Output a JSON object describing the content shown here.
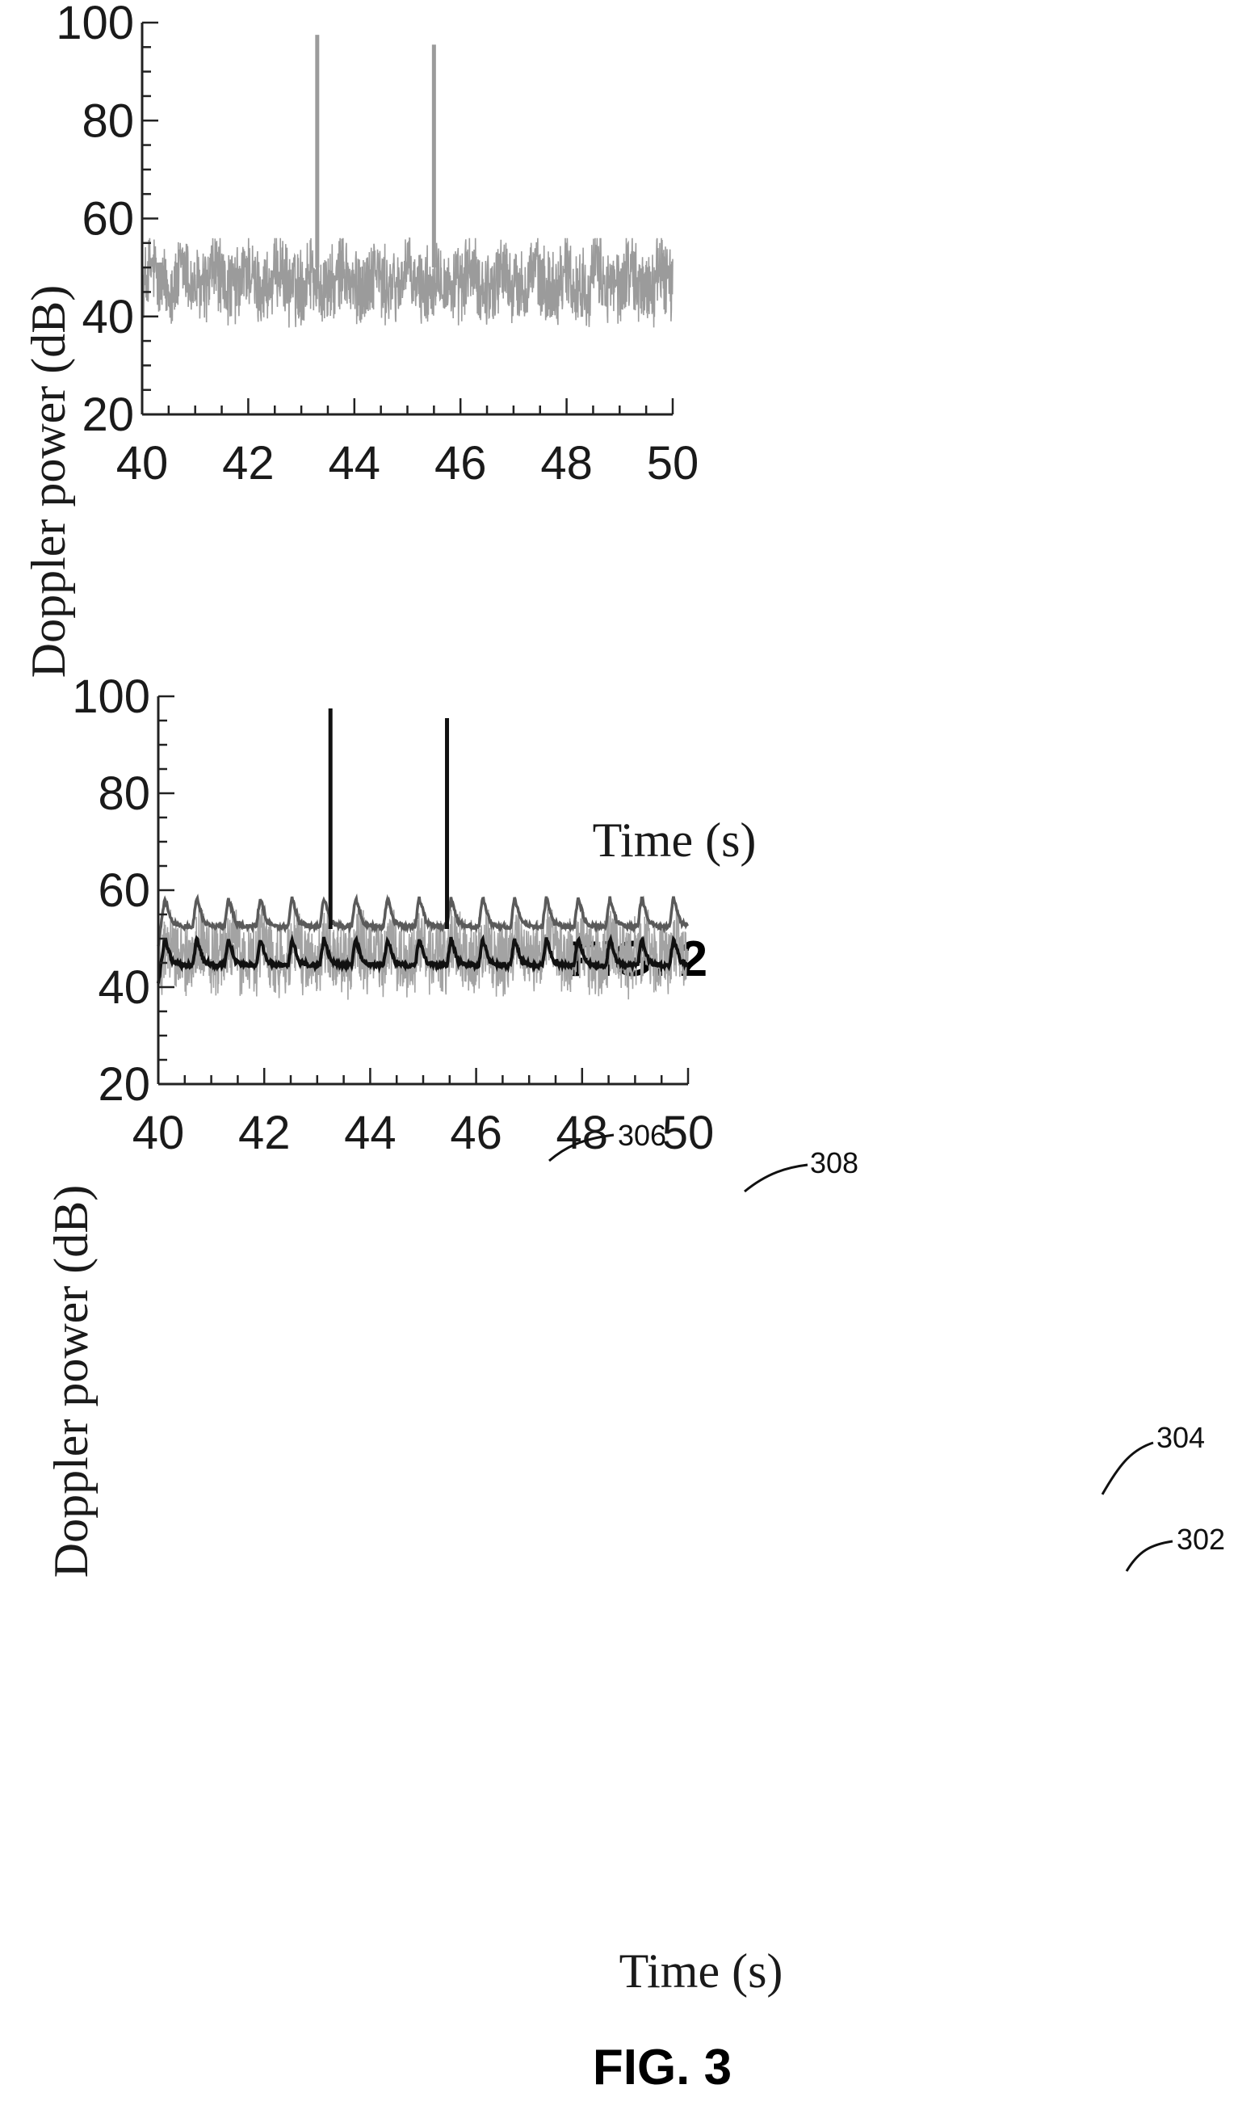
{
  "figures": [
    {
      "caption": "FIG. 2",
      "xlabel": "Time (s)",
      "ylabel": "Doppler power (dB)",
      "xticks": [
        "40",
        "42",
        "44",
        "46",
        "48",
        "50"
      ],
      "yticks": [
        "20",
        "40",
        "60",
        "80",
        "100"
      ],
      "callouts": []
    },
    {
      "caption": "FIG. 3",
      "xlabel": "Time (s)",
      "ylabel": "Doppler power (dB)",
      "xticks": [
        "40",
        "42",
        "44",
        "46",
        "48",
        "50"
      ],
      "yticks": [
        "20",
        "40",
        "60",
        "80",
        "100"
      ],
      "callouts": [
        {
          "label": "306"
        },
        {
          "label": "308"
        },
        {
          "label": "304"
        },
        {
          "label": "302"
        }
      ]
    }
  ],
  "chart_data": [
    {
      "type": "line",
      "xlim": [
        40,
        50
      ],
      "ylim": [
        20,
        100
      ],
      "grid": false,
      "series": [
        {
          "color": "#9b9b9b",
          "style": "noisy",
          "baseline_db": 46,
          "noise_range_db": [
            38,
            56
          ],
          "period_s": 0.6,
          "spikes": [
            {
              "x": 43.3,
              "y": 97.5
            },
            {
              "x": 45.5,
              "y": 95.5
            }
          ]
        }
      ]
    },
    {
      "type": "line",
      "xlim": [
        40,
        50
      ],
      "ylim": [
        20,
        100
      ],
      "grid": false,
      "series": [
        {
          "color": "#a3a3a3",
          "style": "noisy",
          "baseline_db": 46,
          "noise_range_db": [
            38,
            56
          ],
          "period_s": 0.6
        },
        {
          "name": "302",
          "color": "#111111",
          "style": "pulsed",
          "baseline_db": 44.5,
          "peak_db": 50,
          "period_s": 0.6
        },
        {
          "name": "304",
          "color": "#5a5a5a",
          "style": "pulsed",
          "baseline_db": 52.5,
          "peak_db": 58.5,
          "period_s": 0.6
        },
        {
          "name": "306",
          "color": "#111111",
          "style": "spike",
          "x": 43.25,
          "y": 97.5
        },
        {
          "name": "308",
          "color": "#111111",
          "style": "spike",
          "x": 45.45,
          "y": 95.5
        }
      ]
    }
  ]
}
